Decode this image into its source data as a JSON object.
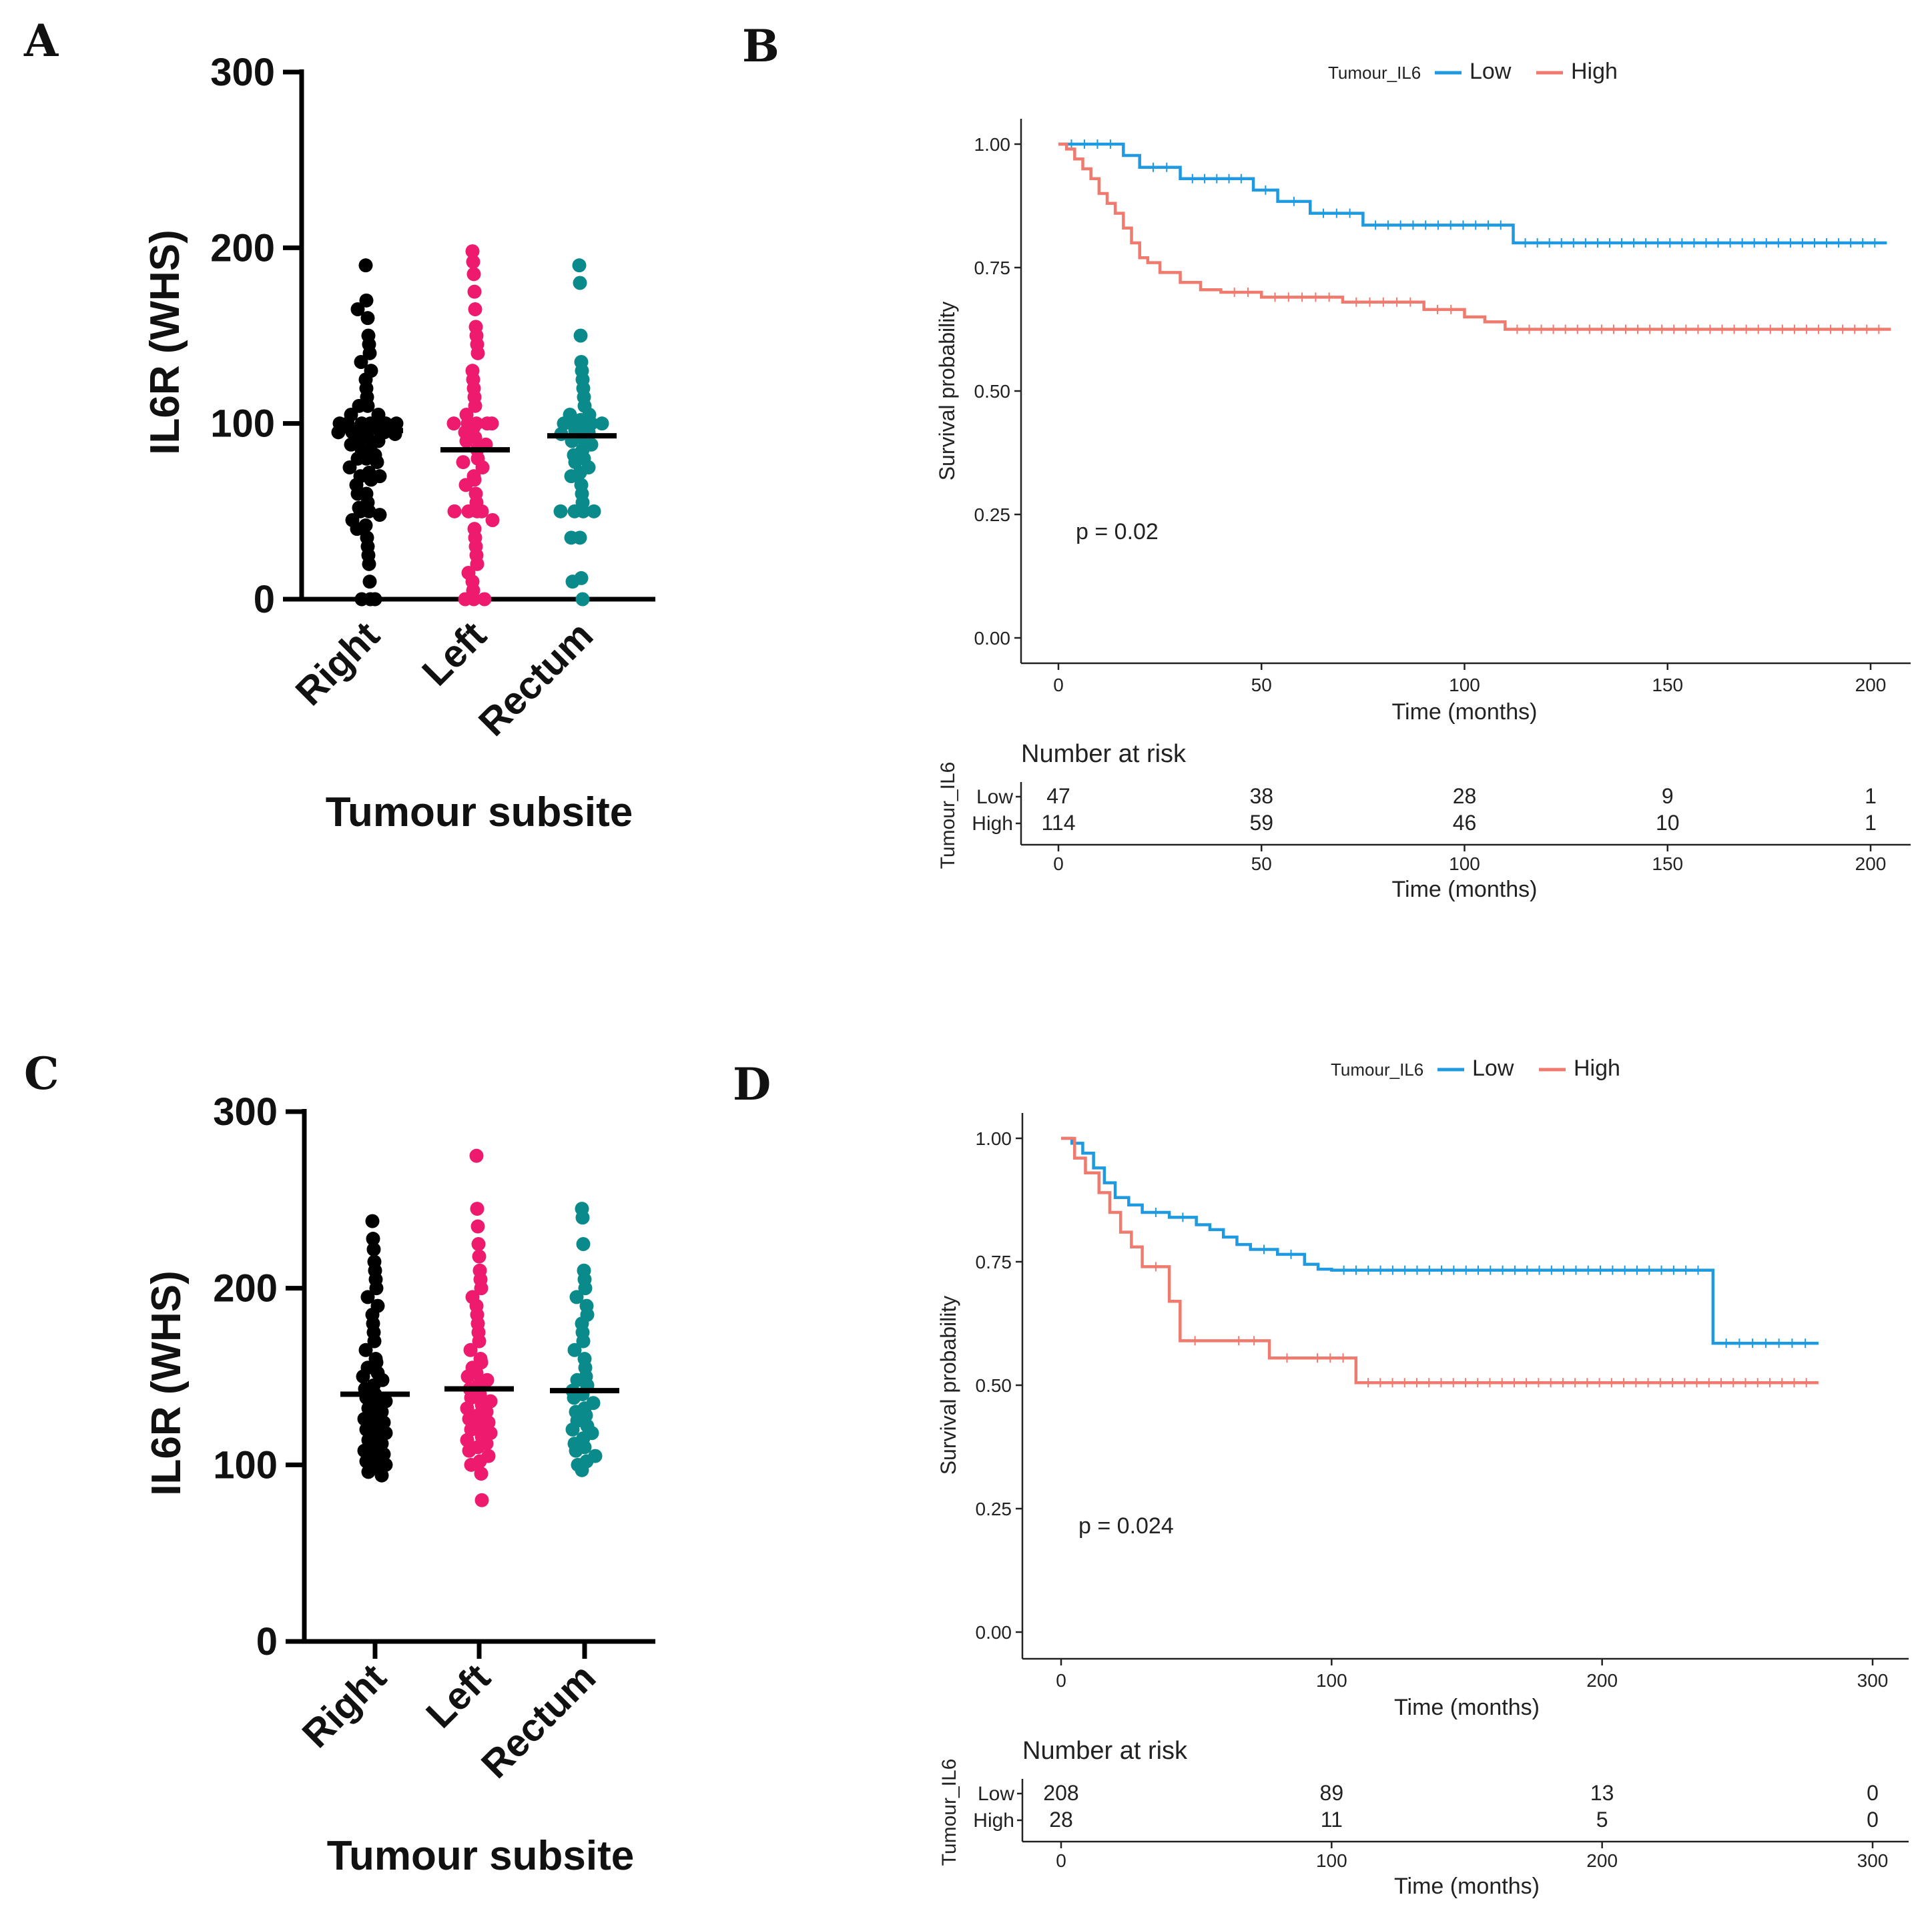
{
  "figure": {
    "panels": [
      "A",
      "B",
      "C",
      "D"
    ]
  },
  "chart_data": [
    {
      "panel": "A",
      "type": "scatter",
      "ylabel": "IL6R (WHS)",
      "xlabel": "Tumour subsite",
      "ylim": [
        0,
        300
      ],
      "yticks": [
        "0",
        "100",
        "200",
        "300"
      ],
      "categories": [
        "Right",
        "Left",
        "Rectum"
      ],
      "colors": [
        "#000000",
        "#ee1a6d",
        "#0a8a8a"
      ],
      "medians": [
        96,
        85,
        93
      ],
      "series": [
        {
          "name": "Right",
          "values": [
            190,
            170,
            165,
            160,
            150,
            145,
            140,
            135,
            130,
            125,
            120,
            115,
            110,
            110,
            105,
            105,
            100,
            100,
            100,
            100,
            100,
            100,
            100,
            98,
            97,
            96,
            95,
            95,
            95,
            94,
            92,
            90,
            90,
            88,
            85,
            85,
            82,
            80,
            80,
            78,
            75,
            72,
            70,
            70,
            68,
            65,
            60,
            60,
            55,
            52,
            50,
            50,
            48,
            45,
            42,
            40,
            35,
            30,
            25,
            20,
            10,
            0,
            0,
            0
          ]
        },
        {
          "name": "Left",
          "values": [
            198,
            192,
            185,
            175,
            165,
            155,
            150,
            145,
            140,
            130,
            125,
            120,
            115,
            110,
            105,
            100,
            100,
            100,
            100,
            100,
            98,
            95,
            92,
            90,
            88,
            85,
            80,
            78,
            75,
            70,
            68,
            65,
            60,
            55,
            50,
            50,
            50,
            50,
            45,
            40,
            35,
            30,
            25,
            20,
            15,
            10,
            5,
            0,
            0,
            0
          ]
        },
        {
          "name": "Rectum",
          "values": [
            190,
            180,
            150,
            135,
            130,
            125,
            120,
            115,
            110,
            105,
            105,
            102,
            100,
            100,
            100,
            100,
            98,
            96,
            95,
            94,
            92,
            90,
            88,
            85,
            82,
            80,
            78,
            75,
            72,
            70,
            65,
            60,
            55,
            50,
            50,
            50,
            50,
            35,
            35,
            12,
            10,
            0
          ]
        }
      ]
    },
    {
      "panel": "B",
      "type": "line",
      "legend_title": "Tumour_IL6",
      "xlabel": "Time (months)",
      "ylabel": "Survival probability",
      "xlim": [
        0,
        200
      ],
      "ylim": [
        0,
        1
      ],
      "xticks": [
        "0",
        "50",
        "100",
        "150",
        "200"
      ],
      "yticks": [
        "0.00",
        "0.25",
        "0.50",
        "0.75",
        "1.00"
      ],
      "pvalue": "p = 0.02",
      "risk_title": "Number at risk",
      "risk_ylabel": "Tumour_IL6",
      "risk_xlabel": "Time (months)",
      "series": [
        {
          "name": "Low",
          "color": "#1f9ae0",
          "x": [
            0,
            16,
            20,
            30,
            48,
            54,
            62,
            75,
            112,
            204
          ],
          "y": [
            1.0,
            0.977,
            0.953,
            0.93,
            0.907,
            0.884,
            0.86,
            0.836,
            0.8,
            0.8
          ],
          "risk": [
            "47",
            "38",
            "28",
            "9",
            "1"
          ]
        },
        {
          "name": "High",
          "color": "#f07a6e",
          "x": [
            0,
            2,
            4,
            6,
            8,
            10,
            12,
            14,
            16,
            18,
            20,
            22,
            25,
            30,
            35,
            40,
            50,
            70,
            90,
            100,
            105,
            110,
            205
          ],
          "y": [
            1.0,
            0.99,
            0.97,
            0.95,
            0.93,
            0.9,
            0.88,
            0.86,
            0.83,
            0.8,
            0.77,
            0.76,
            0.74,
            0.72,
            0.705,
            0.7,
            0.69,
            0.68,
            0.665,
            0.65,
            0.64,
            0.625,
            0.625
          ],
          "risk": [
            "114",
            "59",
            "46",
            "10",
            "1"
          ]
        }
      ]
    },
    {
      "panel": "C",
      "type": "scatter",
      "ylabel": "IL6R (WHS)",
      "xlabel": "Tumour subsite",
      "ylim": [
        0,
        300
      ],
      "yticks": [
        "0",
        "100",
        "200",
        "300"
      ],
      "categories": [
        "Right",
        "Left",
        "Rectum"
      ],
      "colors": [
        "#000000",
        "#ee1a6d",
        "#0a8a8a"
      ],
      "medians": [
        140,
        143,
        142
      ],
      "series": [
        {
          "name": "Right",
          "values": [
            238,
            228,
            222,
            215,
            210,
            205,
            200,
            195,
            190,
            185,
            180,
            175,
            170,
            165,
            160,
            158,
            155,
            152,
            150,
            148,
            145,
            143,
            140,
            138,
            136,
            134,
            132,
            130,
            128,
            126,
            124,
            122,
            120,
            118,
            116,
            114,
            112,
            110,
            108,
            106,
            104,
            102,
            100,
            98,
            96,
            94
          ]
        },
        {
          "name": "Left",
          "values": [
            275,
            245,
            235,
            225,
            218,
            210,
            205,
            200,
            195,
            190,
            185,
            180,
            175,
            170,
            165,
            160,
            158,
            155,
            152,
            150,
            148,
            145,
            143,
            140,
            138,
            136,
            134,
            132,
            130,
            128,
            126,
            124,
            122,
            120,
            118,
            116,
            114,
            112,
            110,
            108,
            105,
            102,
            100,
            95,
            80
          ]
        },
        {
          "name": "Rectum",
          "values": [
            245,
            240,
            225,
            210,
            205,
            200,
            195,
            190,
            185,
            180,
            175,
            170,
            165,
            160,
            155,
            150,
            148,
            145,
            142,
            140,
            138,
            135,
            132,
            130,
            128,
            125,
            122,
            120,
            118,
            115,
            112,
            110,
            108,
            105,
            102,
            100,
            97
          ]
        }
      ]
    },
    {
      "panel": "D",
      "type": "line",
      "legend_title": "Tumour_IL6",
      "xlabel": "Time (months)",
      "ylabel": "Survival probability",
      "xlim": [
        0,
        300
      ],
      "ylim": [
        0,
        1
      ],
      "xticks": [
        "0",
        "100",
        "200",
        "300"
      ],
      "yticks": [
        "0.00",
        "0.25",
        "0.50",
        "0.75",
        "1.00"
      ],
      "pvalue": "p = 0.024",
      "risk_title": "Number at risk",
      "risk_ylabel": "Tumour_IL6",
      "risk_xlabel": "Time (months)",
      "series": [
        {
          "name": "Low",
          "color": "#1f9ae0",
          "x": [
            0,
            4,
            8,
            12,
            16,
            20,
            25,
            30,
            40,
            50,
            55,
            60,
            65,
            70,
            80,
            90,
            95,
            100,
            240,
            241,
            280
          ],
          "y": [
            1.0,
            0.99,
            0.97,
            0.94,
            0.91,
            0.88,
            0.865,
            0.85,
            0.84,
            0.825,
            0.815,
            0.8,
            0.785,
            0.775,
            0.765,
            0.745,
            0.735,
            0.733,
            0.733,
            0.585,
            0.585
          ],
          "risk": [
            "208",
            "89",
            "13",
            "0"
          ]
        },
        {
          "name": "High",
          "color": "#f07a6e",
          "x": [
            0,
            5,
            9,
            14,
            18,
            22,
            26,
            30,
            40,
            44,
            55,
            60,
            77,
            90,
            109,
            280
          ],
          "y": [
            1.0,
            0.96,
            0.93,
            0.89,
            0.85,
            0.81,
            0.78,
            0.74,
            0.67,
            0.59,
            0.59,
            0.59,
            0.555,
            0.555,
            0.505,
            0.505
          ],
          "risk": [
            "28",
            "11",
            "5",
            "0"
          ]
        }
      ]
    }
  ]
}
